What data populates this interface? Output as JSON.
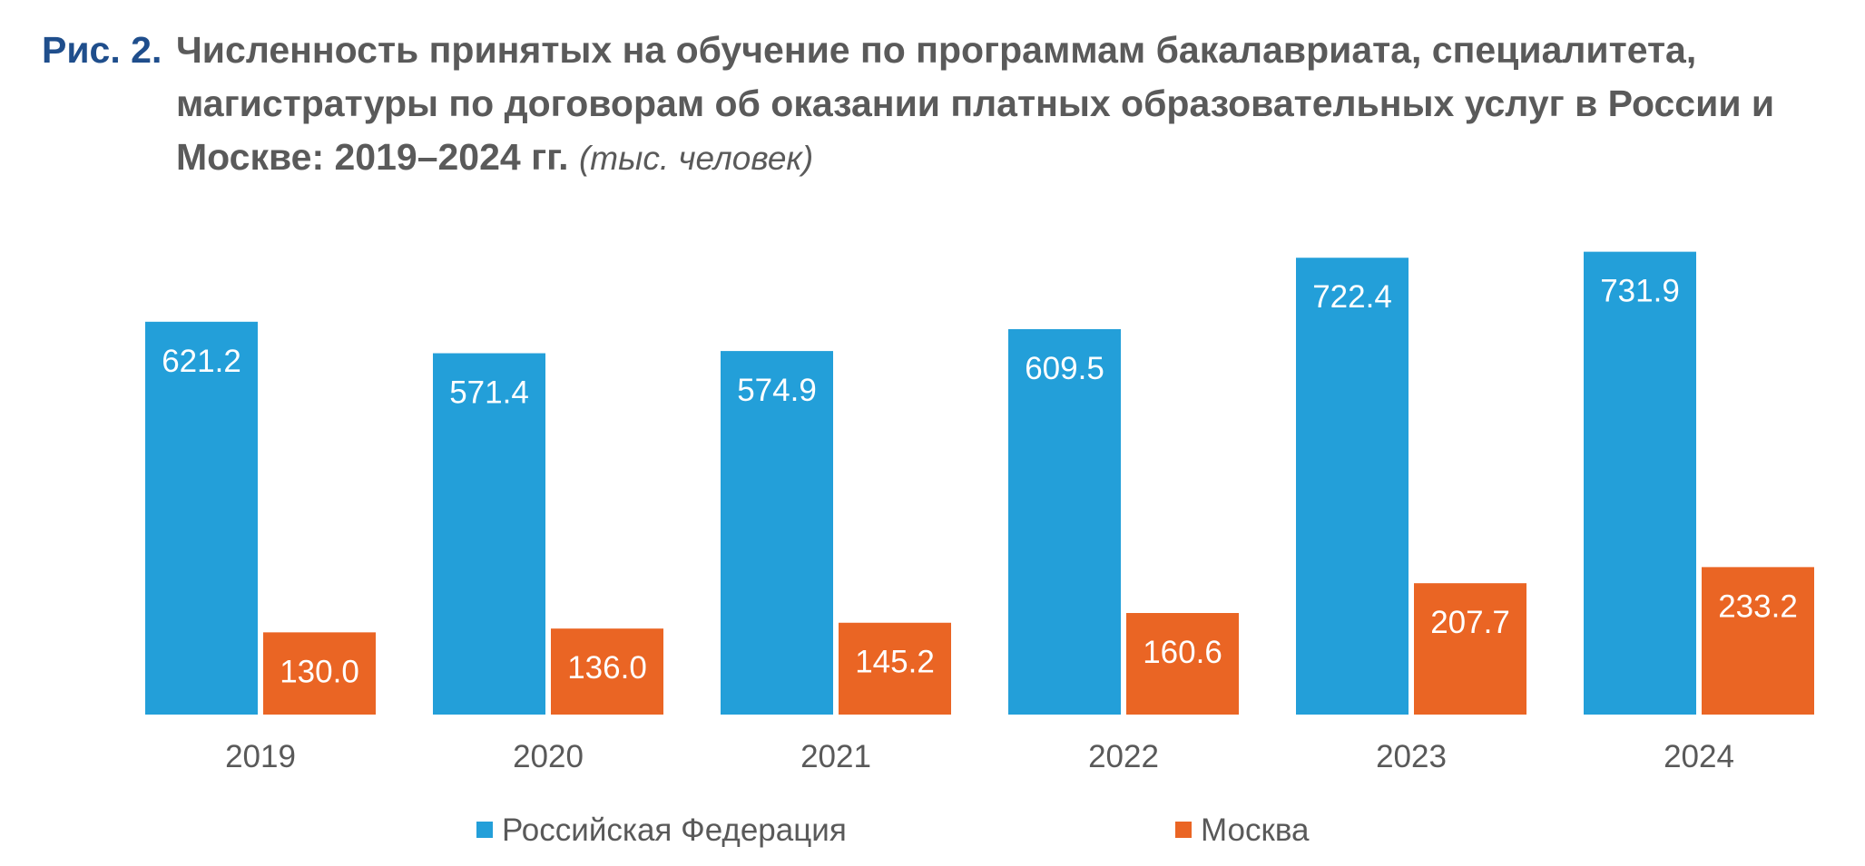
{
  "figure": {
    "label": "Рис. 2.",
    "title": "Численность принятых на обучение по программам бакалавриата, специалитета, магистратуры по договорам об оказании платных образовательных услуг в России и Москве: 2019–2024 гг.",
    "unit": "(тыс. человек)"
  },
  "colors": {
    "russia": "#239fd9",
    "moscow": "#ea6524",
    "title_label": "#1f4e8c",
    "text": "#595959"
  },
  "chart_data": {
    "type": "bar",
    "title": "Численность принятых на обучение по программам бакалавриата, специалитета, магистратуры по договорам об оказании платных образовательных услуг в России и Москве: 2019–2024 гг.",
    "unit": "(тыс. человек)",
    "categories": [
      "2019",
      "2020",
      "2021",
      "2022",
      "2023",
      "2024"
    ],
    "series": [
      {
        "name": "Российская Федерация",
        "values": [
          621.2,
          571.4,
          574.9,
          609.5,
          722.4,
          731.9
        ],
        "labels": [
          "621.2",
          "571.4",
          "574.9",
          "609.5",
          "722.4",
          "731.9"
        ]
      },
      {
        "name": "Москва",
        "values": [
          130.0,
          136.0,
          145.2,
          160.6,
          207.7,
          233.2
        ],
        "labels": [
          "130.0",
          "136.0",
          "145.2",
          "160.6",
          "207.7",
          "233.2"
        ]
      }
    ],
    "xlabel": "",
    "ylabel": "",
    "ylim": [
      0,
      750
    ],
    "grid": false,
    "legend": "bottom"
  }
}
